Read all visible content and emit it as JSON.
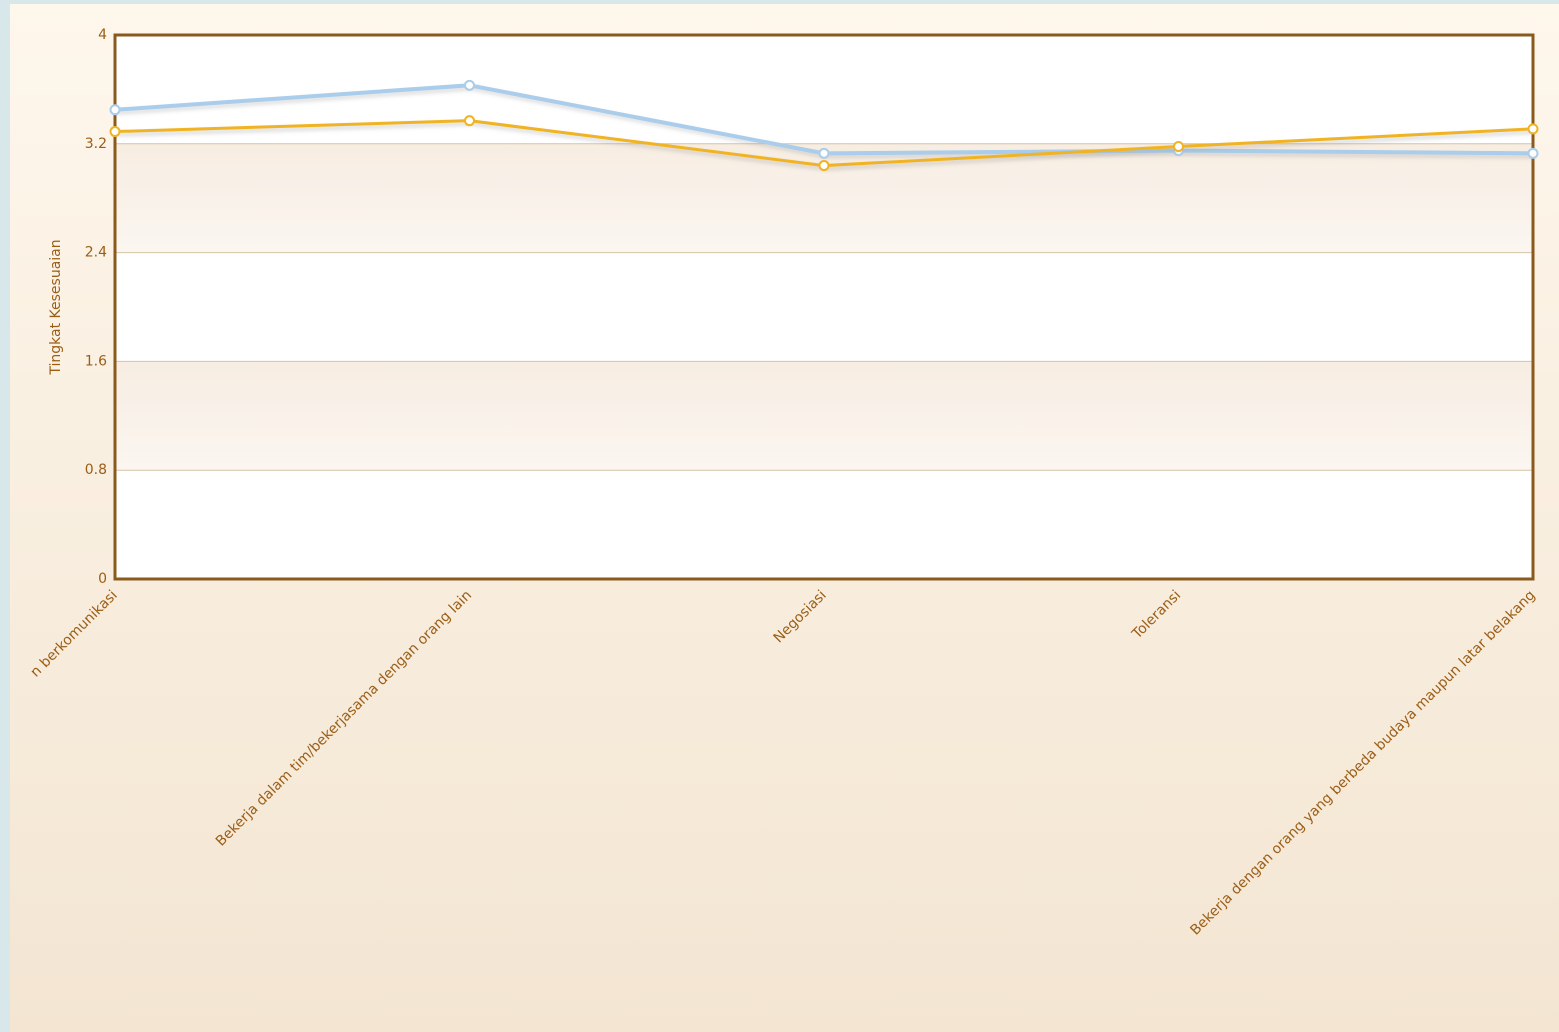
{
  "chart_data": {
    "type": "line",
    "y_label": "Tingkat Kesesuaian",
    "categories": [
      "n berkomunikasi",
      "Bekerja dalam tim/bekerjasama dengan orang lain",
      "Negosiasi",
      "Toleransi",
      "Bekerja dengan orang yang berbeda budaya maupun latar belakang"
    ],
    "series": [
      {
        "color": "#a9cdeb",
        "values": [
          3.45,
          3.63,
          3.13,
          3.15,
          3.13
        ]
      },
      {
        "color": "#f0b323",
        "values": [
          3.29,
          3.37,
          3.04,
          3.18,
          3.31
        ]
      }
    ],
    "ylim": [
      0,
      4
    ],
    "yticks": [
      0,
      0.8,
      1.6,
      2.4,
      3.2,
      4
    ],
    "grid": true
  }
}
